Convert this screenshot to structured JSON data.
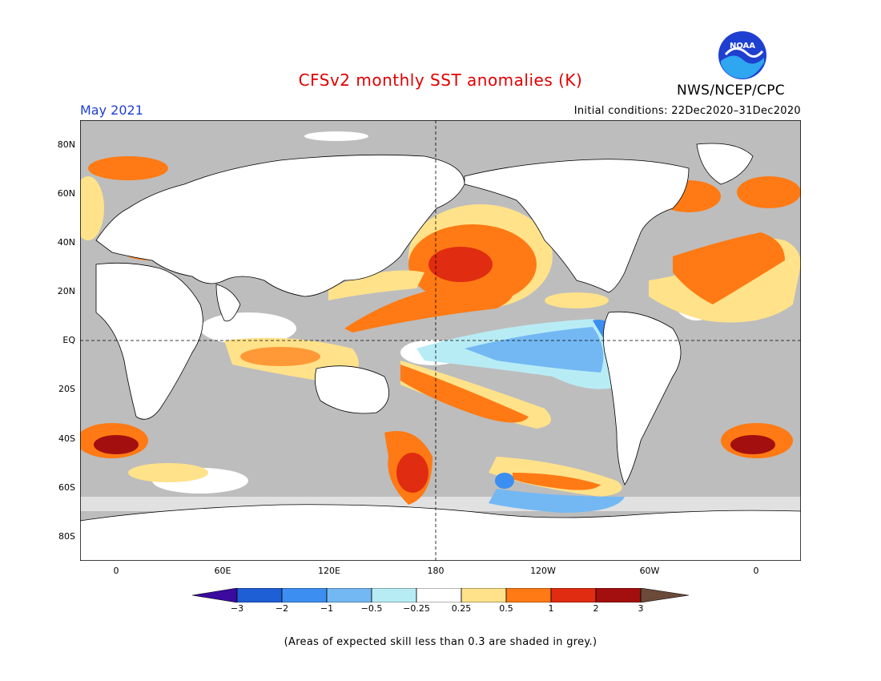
{
  "title": "CFSv2 monthly SST anomalies (K)",
  "valid_month": "May 2021",
  "initial_conditions": "Initial conditions: 22Dec2020–31Dec2020",
  "agency": "NWS/NCEP/CPC",
  "logo_text": "NOAA",
  "lat_labels": [
    "80N",
    "60N",
    "40N",
    "20N",
    "EQ",
    "20S",
    "40S",
    "60S",
    "80S"
  ],
  "lon_labels": [
    "0",
    "60E",
    "120E",
    "180",
    "120W",
    "60W",
    "0"
  ],
  "colorbar": {
    "ticks": [
      "−3",
      "−2",
      "−1",
      "−0.5",
      "−0.25",
      "0.25",
      "0.5",
      "1",
      "2",
      "3"
    ],
    "colors": [
      "#3b0a9e",
      "#1f5fd6",
      "#3c8ff0",
      "#73b8f3",
      "#b8ecf5",
      "#ffffff",
      "#ffe28a",
      "#ff7a14",
      "#e02c10",
      "#a30e0e",
      "#6b4a3a"
    ]
  },
  "colors": {
    "title": "#e00000",
    "month": "#1f3fd0",
    "no_skill": "#bdbdbd",
    "land": "#ffffff"
  },
  "note": "(Areas of expected skill less than 0.3 are shaded in grey.)"
}
